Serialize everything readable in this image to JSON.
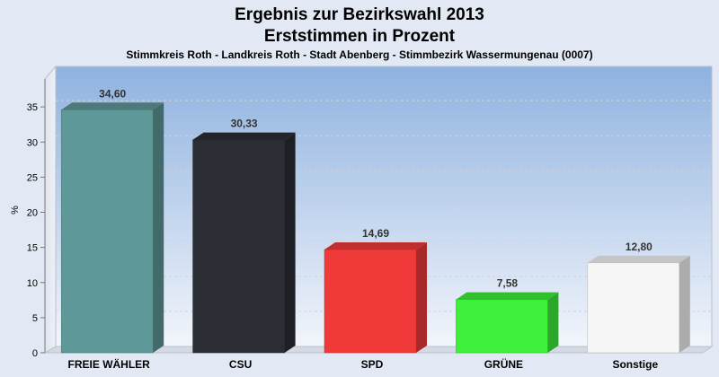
{
  "chart_data": {
    "type": "bar",
    "title": "Ergebnis zur Bezirkswahl 2013",
    "title2": "Erststimmen in Prozent",
    "subtitle": "Stimmkreis Roth - Landkreis Roth - Stadt Abenberg - Stimmbezirk Wassermungenau (0007)",
    "ylabel": "%",
    "xlabel": "",
    "ylim": [
      0,
      40
    ],
    "yticks": [
      0,
      5,
      10,
      15,
      20,
      25,
      30,
      35
    ],
    "grid": true,
    "categories": [
      "FREIE WÄHLER",
      "CSU",
      "SPD",
      "GRÜNE",
      "Sonstige"
    ],
    "values": [
      34.6,
      30.33,
      14.69,
      7.58,
      12.8
    ],
    "value_labels": [
      "34,60",
      "30,33",
      "14,69",
      "7,58",
      "12,80"
    ],
    "colors": [
      "#5f9898",
      "#2a2d33",
      "#f03a3a",
      "#3ef03a",
      "#f6f6f6"
    ]
  }
}
